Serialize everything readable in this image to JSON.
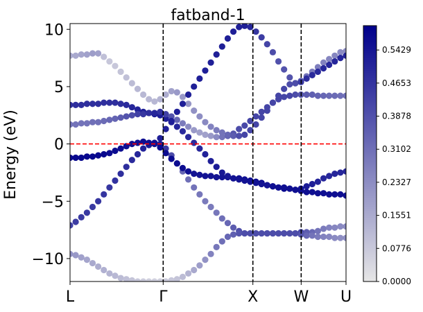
{
  "chart_data": {
    "type": "scatter",
    "title": "fatband-1",
    "xlabel": "",
    "ylabel": "Energy (eV)",
    "xlim": [
      0,
      4
    ],
    "ylim": [
      -12,
      10.5
    ],
    "x_ticks": [
      {
        "x": 0,
        "label": "L"
      },
      {
        "x": 1.35,
        "label": "Γ"
      },
      {
        "x": 2.65,
        "label": "X"
      },
      {
        "x": 3.35,
        "label": "W"
      },
      {
        "x": 4,
        "label": "U"
      }
    ],
    "y_ticks": [
      {
        "y": 10,
        "label": "10"
      },
      {
        "y": 5,
        "label": "5"
      },
      {
        "y": 0,
        "label": "0"
      },
      {
        "y": -5,
        "label": "−5"
      },
      {
        "y": -10,
        "label": "−10"
      }
    ],
    "fermi_level": 0,
    "high_symmetry_lines": [
      1.35,
      2.65,
      3.35
    ],
    "colorbar": {
      "min": 0.0,
      "max": 0.6,
      "ticks": [
        "0.0000",
        "0.0776",
        "0.1551",
        "0.2327",
        "0.3102",
        "0.3878",
        "0.4653",
        "0.5429"
      ],
      "tick_values": [
        0.0,
        0.0776,
        0.1551,
        0.2327,
        0.3102,
        0.3878,
        0.4653,
        0.5429
      ],
      "color_low": "#e6e6e6",
      "color_high": "#00008b"
    },
    "fermi_color": "#ff0000",
    "series": [
      {
        "energies": [
          -7.1,
          -6.8,
          -6.4,
          -6.0,
          -5.5,
          -5.0,
          -4.4,
          -3.8,
          -3.2,
          -2.6,
          -2.0,
          -1.4,
          -0.9,
          -0.4,
          -0.1,
          0.1,
          0.0,
          -0.4,
          -1.0,
          -1.7,
          -2.4,
          -3.1,
          -3.8,
          -4.4,
          -5.0,
          -5.5,
          -6.0,
          -6.5,
          -6.9,
          -7.3,
          -7.6,
          -7.8,
          -7.8,
          -7.8,
          -7.8,
          -7.8,
          -7.8,
          -7.8,
          -7.8,
          -7.8,
          -7.8,
          -7.7,
          -7.7,
          -7.7,
          -7.6,
          -7.4,
          -7.3,
          -7.3,
          -7.2,
          -7.2
        ],
        "weights": [
          0.43,
          0.44,
          0.45,
          0.45,
          0.45,
          0.46,
          0.46,
          0.46,
          0.47,
          0.48,
          0.48,
          0.49,
          0.5,
          0.51,
          0.53,
          0.55,
          0.52,
          0.45,
          0.4,
          0.36,
          0.33,
          0.31,
          0.3,
          0.29,
          0.28,
          0.28,
          0.29,
          0.31,
          0.33,
          0.36,
          0.4,
          0.43,
          0.42,
          0.42,
          0.42,
          0.42,
          0.42,
          0.42,
          0.42,
          0.42,
          0.42,
          0.42,
          0.36,
          0.33,
          0.3,
          0.28,
          0.26,
          0.25,
          0.24,
          0.24
        ]
      },
      {
        "energies": [
          -9.6,
          -9.7,
          -9.9,
          -10.1,
          -10.4,
          -10.7,
          -11.0,
          -11.3,
          -11.5,
          -11.7,
          -11.8,
          -11.9,
          -12.0,
          -12.0,
          -12.0,
          -12.0,
          -12.0,
          -12.0,
          -11.9,
          -11.8,
          -11.6,
          -11.3,
          -11.0,
          -10.6,
          -10.1,
          -9.6,
          -9.0,
          -8.5,
          -8.1,
          -7.9,
          -7.8,
          -7.8,
          -7.8,
          -7.8,
          -7.8,
          -7.8,
          -7.8,
          -7.8,
          -7.8,
          -7.8,
          -7.8,
          -7.9,
          -8.0,
          -8.0,
          -8.1,
          -8.1,
          -8.1,
          -8.2,
          -8.2,
          -8.2
        ],
        "weights": [
          0.22,
          0.2,
          0.18,
          0.17,
          0.16,
          0.15,
          0.14,
          0.13,
          0.12,
          0.11,
          0.1,
          0.09,
          0.08,
          0.07,
          0.06,
          0.06,
          0.06,
          0.07,
          0.08,
          0.09,
          0.11,
          0.13,
          0.16,
          0.19,
          0.22,
          0.26,
          0.29,
          0.31,
          0.33,
          0.35,
          0.38,
          0.4,
          0.4,
          0.4,
          0.4,
          0.4,
          0.4,
          0.4,
          0.4,
          0.4,
          0.4,
          0.38,
          0.33,
          0.3,
          0.28,
          0.26,
          0.25,
          0.24,
          0.23,
          0.23
        ]
      },
      {
        "energies": [
          -1.2,
          -1.2,
          -1.2,
          -1.1,
          -1.1,
          -1.0,
          -0.9,
          -0.8,
          -0.6,
          -0.4,
          -0.2,
          0.0,
          0.1,
          0.2,
          0.1,
          0.0,
          -0.3,
          -0.8,
          -1.3,
          -1.7,
          -2.1,
          -2.4,
          -2.6,
          -2.7,
          -2.8,
          -2.8,
          -2.9,
          -2.9,
          -2.9,
          -3.0,
          -3.0,
          -3.1,
          -3.2,
          -3.3,
          -3.4,
          -3.6,
          -3.7,
          -3.8,
          -3.9,
          -3.9,
          -4.0,
          -3.9,
          -3.7,
          -3.5,
          -3.3,
          -3.0,
          -2.8,
          -2.6,
          -2.5,
          -2.4
        ],
        "weights": [
          0.58,
          0.58,
          0.58,
          0.58,
          0.58,
          0.58,
          0.58,
          0.57,
          0.57,
          0.57,
          0.56,
          0.56,
          0.56,
          0.56,
          0.56,
          0.56,
          0.57,
          0.57,
          0.57,
          0.57,
          0.57,
          0.56,
          0.55,
          0.55,
          0.55,
          0.55,
          0.55,
          0.55,
          0.56,
          0.56,
          0.56,
          0.57,
          0.58,
          0.58,
          0.59,
          0.6,
          0.6,
          0.6,
          0.6,
          0.6,
          0.58,
          0.55,
          0.53,
          0.52,
          0.51,
          0.5,
          0.5,
          0.5,
          0.5,
          0.5
        ]
      },
      {
        "energies": [
          3.4,
          3.4,
          3.4,
          3.5,
          3.5,
          3.5,
          3.6,
          3.6,
          3.6,
          3.5,
          3.4,
          3.2,
          3.0,
          2.8,
          2.7,
          2.6,
          2.5,
          2.2,
          1.9,
          1.5,
          1.1,
          0.6,
          0.1,
          -0.4,
          -0.9,
          -1.5,
          -2.0,
          -2.5,
          -2.8,
          -3.0,
          -3.1,
          -3.2,
          -3.3,
          -3.4,
          -3.5,
          -3.6,
          -3.7,
          -3.8,
          -3.8,
          -3.9,
          -4.0,
          -4.1,
          -4.2,
          -4.2,
          -4.3,
          -4.3,
          -4.4,
          -4.4,
          -4.4,
          -4.5
        ],
        "weights": [
          0.48,
          0.48,
          0.48,
          0.48,
          0.48,
          0.48,
          0.48,
          0.48,
          0.48,
          0.48,
          0.49,
          0.5,
          0.51,
          0.52,
          0.53,
          0.54,
          0.53,
          0.52,
          0.51,
          0.5,
          0.49,
          0.49,
          0.49,
          0.5,
          0.51,
          0.52,
          0.53,
          0.54,
          0.54,
          0.55,
          0.55,
          0.55,
          0.55,
          0.55,
          0.55,
          0.55,
          0.56,
          0.56,
          0.56,
          0.56,
          0.56,
          0.56,
          0.56,
          0.56,
          0.56,
          0.56,
          0.56,
          0.56,
          0.56,
          0.56
        ]
      },
      {
        "energies": [
          1.7,
          1.7,
          1.8,
          1.8,
          1.9,
          1.9,
          2.0,
          2.1,
          2.2,
          2.3,
          2.4,
          2.5,
          2.6,
          2.6,
          2.7,
          2.7,
          2.8,
          2.6,
          2.4,
          2.1,
          1.8,
          1.5,
          1.2,
          1.0,
          0.8,
          0.7,
          0.6,
          0.6,
          0.7,
          0.9,
          1.3,
          1.6,
          2.0,
          2.4,
          2.8,
          3.2,
          3.6,
          3.9,
          4.1,
          4.2,
          4.3,
          4.3,
          4.3,
          4.3,
          4.2,
          4.2,
          4.2,
          4.2,
          4.2,
          4.2
        ],
        "weights": [
          0.3,
          0.3,
          0.3,
          0.3,
          0.31,
          0.31,
          0.32,
          0.33,
          0.34,
          0.36,
          0.38,
          0.4,
          0.43,
          0.46,
          0.48,
          0.5,
          0.47,
          0.43,
          0.38,
          0.33,
          0.28,
          0.24,
          0.2,
          0.18,
          0.18,
          0.2,
          0.24,
          0.3,
          0.35,
          0.38,
          0.4,
          0.41,
          0.42,
          0.42,
          0.42,
          0.42,
          0.42,
          0.42,
          0.42,
          0.42,
          0.4,
          0.38,
          0.36,
          0.35,
          0.34,
          0.33,
          0.32,
          0.32,
          0.31,
          0.31
        ]
      },
      {
        "energies": [
          7.7,
          7.7,
          7.8,
          7.8,
          7.9,
          7.9,
          7.6,
          7.2,
          6.8,
          6.3,
          5.8,
          5.3,
          4.8,
          4.3,
          3.9,
          3.7,
          3.9,
          4.3,
          4.6,
          4.5,
          4.1,
          3.5,
          2.9,
          2.4,
          1.9,
          1.5,
          1.2,
          1.0,
          0.8,
          0.7,
          0.7,
          0.8,
          1.2,
          1.7,
          2.3,
          2.9,
          3.6,
          4.2,
          4.8,
          5.2,
          5.3,
          5.5,
          5.9,
          6.3,
          6.7,
          7.1,
          7.4,
          7.7,
          8.0,
          8.1
        ],
        "weights": [
          0.16,
          0.16,
          0.17,
          0.18,
          0.19,
          0.18,
          0.1,
          0.08,
          0.08,
          0.09,
          0.1,
          0.11,
          0.12,
          0.12,
          0.12,
          0.12,
          0.13,
          0.15,
          0.18,
          0.2,
          0.2,
          0.21,
          0.22,
          0.23,
          0.24,
          0.26,
          0.28,
          0.3,
          0.33,
          0.36,
          0.4,
          0.42,
          0.42,
          0.42,
          0.42,
          0.42,
          0.42,
          0.42,
          0.42,
          0.4,
          0.38,
          0.33,
          0.3,
          0.28,
          0.27,
          0.26,
          0.25,
          0.25,
          0.24,
          0.24
        ]
      },
      {
        "energies": [
          -7.0,
          -6.6,
          -6.2,
          -5.8,
          -5.3,
          -4.8,
          -4.2,
          -3.6,
          -3.0,
          -2.4,
          -1.8,
          -1.2,
          -0.6,
          -0.1,
          0.1,
          0.2,
          0.5,
          1.3,
          2.0,
          2.8,
          3.5,
          4.3,
          5.0,
          5.7,
          6.4,
          7.1,
          7.8,
          8.5,
          9.2,
          9.8,
          10.2,
          10.3,
          10.2,
          9.8,
          9.3,
          8.7,
          8.0,
          7.2,
          6.5,
          5.8,
          5.3,
          5.4,
          5.7,
          6.0,
          6.3,
          6.6,
          6.9,
          7.2,
          7.5,
          7.7
        ],
        "weights": [
          0.0,
          0.0,
          0.0,
          0.0,
          0.0,
          0.0,
          0.0,
          0.0,
          0.0,
          0.0,
          0.0,
          0.0,
          0.0,
          0.0,
          0.0,
          0.0,
          0.52,
          0.52,
          0.52,
          0.52,
          0.52,
          0.52,
          0.52,
          0.52,
          0.52,
          0.52,
          0.52,
          0.52,
          0.52,
          0.52,
          0.52,
          0.52,
          0.5,
          0.46,
          0.44,
          0.42,
          0.4,
          0.39,
          0.38,
          0.38,
          0.4,
          0.45,
          0.48,
          0.49,
          0.49,
          0.5,
          0.5,
          0.5,
          0.5,
          0.51
        ]
      }
    ]
  }
}
